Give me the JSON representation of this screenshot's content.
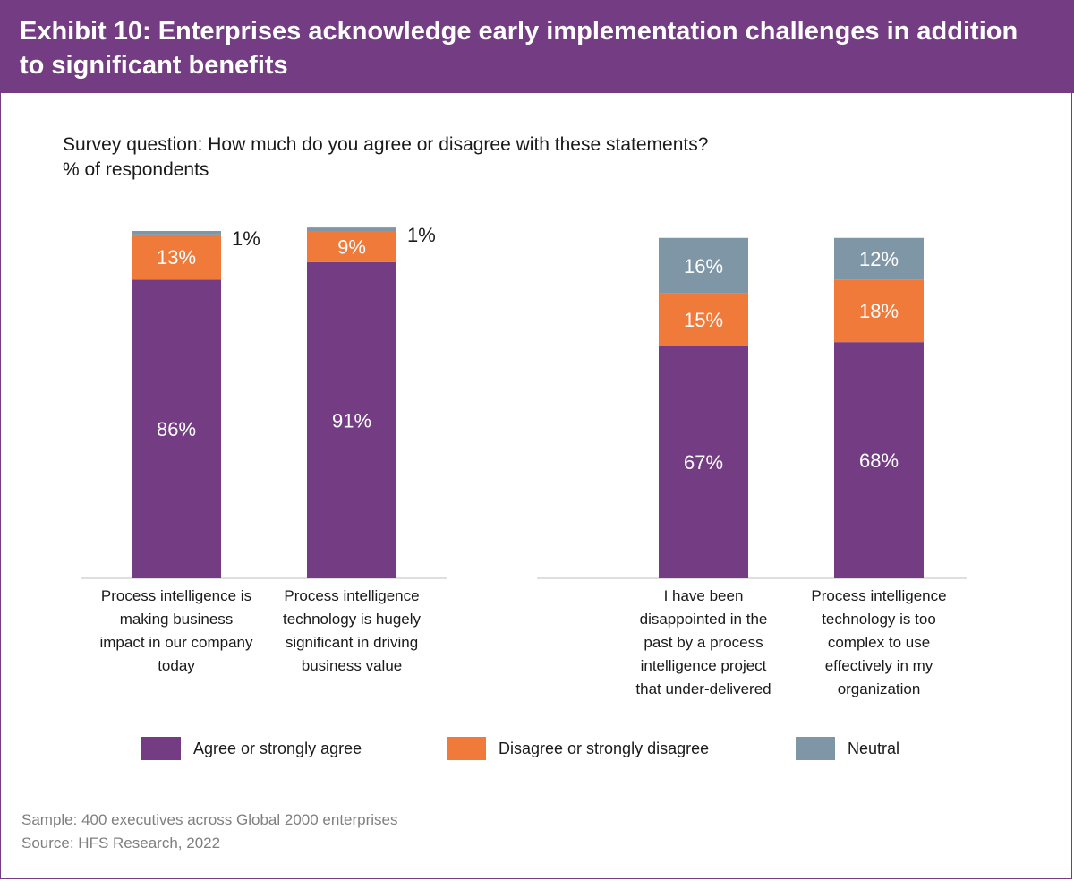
{
  "header": {
    "title": "Exhibit 10: Enterprises acknowledge early implementation challenges in addition to significant benefits"
  },
  "survey": {
    "question": "Survey question: How much do you agree or disagree with these statements?",
    "unit": "% of respondents"
  },
  "colors": {
    "agree": "#743c82",
    "disagree": "#f07a3a",
    "neutral": "#7f96a6",
    "header": "#743c82"
  },
  "chart_data": {
    "type": "bar",
    "stacked": true,
    "ylim": [
      0,
      100
    ],
    "categories": [
      "Process intelligence is\nmaking business\nimpact in our company\ntoday",
      "Process intelligence\ntechnology is hugely\nsignificant in driving\nbusiness value",
      "I have been\ndisappointed in the\npast by a process\nintelligence project\nthat under-delivered",
      "Process intelligence\ntechnology is too\ncomplex to use\neffectively in my\norganization"
    ],
    "series": [
      {
        "name": "Agree or strongly agree",
        "color_key": "agree",
        "values": [
          86,
          91,
          67,
          68
        ],
        "labels": [
          "86%",
          "91%",
          "67%",
          "68%"
        ]
      },
      {
        "name": "Disagree or strongly disagree",
        "color_key": "disagree",
        "values": [
          13,
          9,
          15,
          18
        ],
        "labels": [
          "13%",
          "9%",
          "15%",
          "18%"
        ]
      },
      {
        "name": "Neutral",
        "color_key": "neutral",
        "values": [
          1,
          1,
          16,
          12
        ],
        "labels": [
          "1%",
          "1%",
          "16%",
          "12%"
        ]
      }
    ],
    "legend": [
      "Agree or strongly agree",
      "Disagree or strongly disagree",
      "Neutral"
    ],
    "legend_position": "bottom"
  },
  "footer": {
    "sample": "Sample: 400 executives across Global 2000 enterprises",
    "source": "Source: HFS Research, 2022"
  }
}
